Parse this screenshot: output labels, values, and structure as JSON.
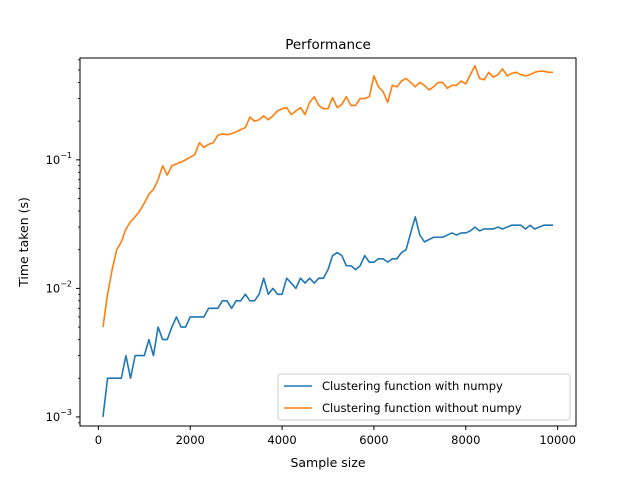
{
  "colors": {
    "series_with_numpy": "#1f77b4",
    "series_without_numpy": "#ff7f0e",
    "axes": "#000000",
    "legend_border": "#cccccc"
  },
  "chart_data": {
    "type": "line",
    "title": "Performance",
    "xlabel": "Sample size",
    "ylabel": "Time taken (s)",
    "yscale": "log",
    "xlim": [
      -400,
      10400
    ],
    "ylim": [
      0.00085,
      0.62
    ],
    "grid": false,
    "legend": "lower-right",
    "x_ticks": [
      {
        "value": 0,
        "label": "0"
      },
      {
        "value": 2000,
        "label": "2000"
      },
      {
        "value": 4000,
        "label": "4000"
      },
      {
        "value": 6000,
        "label": "6000"
      },
      {
        "value": 8000,
        "label": "8000"
      },
      {
        "value": 10000,
        "label": "10000"
      }
    ],
    "y_ticks": [
      {
        "value": 0.001,
        "base": "10",
        "exp": "−3"
      },
      {
        "value": 0.01,
        "base": "10",
        "exp": "−2"
      },
      {
        "value": 0.1,
        "base": "10",
        "exp": "−1"
      }
    ],
    "x": [
      100,
      200,
      300,
      400,
      500,
      600,
      700,
      800,
      900,
      1000,
      1100,
      1200,
      1300,
      1400,
      1500,
      1600,
      1700,
      1800,
      1900,
      2000,
      2100,
      2200,
      2300,
      2400,
      2500,
      2600,
      2700,
      2800,
      2900,
      3000,
      3100,
      3200,
      3300,
      3400,
      3500,
      3600,
      3700,
      3800,
      3900,
      4000,
      4100,
      4200,
      4300,
      4400,
      4500,
      4600,
      4700,
      4800,
      4900,
      5000,
      5100,
      5200,
      5300,
      5400,
      5500,
      5600,
      5700,
      5800,
      5900,
      6000,
      6100,
      6200,
      6300,
      6400,
      6500,
      6600,
      6700,
      6800,
      6900,
      7000,
      7100,
      7200,
      7300,
      7400,
      7500,
      7600,
      7700,
      7800,
      7900,
      8000,
      8100,
      8200,
      8300,
      8400,
      8500,
      8600,
      8700,
      8800,
      8900,
      9000,
      9100,
      9200,
      9300,
      9400,
      9500,
      9600,
      9700,
      9800,
      9900
    ],
    "series": [
      {
        "name": "Clustering function with numpy",
        "color": "#1f77b4",
        "values": [
          0.001,
          0.002,
          0.002,
          0.002,
          0.002,
          0.003,
          0.002,
          0.003,
          0.003,
          0.003,
          0.004,
          0.003,
          0.005,
          0.004,
          0.004,
          0.005,
          0.006,
          0.005,
          0.005,
          0.006,
          0.006,
          0.006,
          0.006,
          0.007,
          0.007,
          0.007,
          0.008,
          0.008,
          0.007,
          0.008,
          0.008,
          0.009,
          0.008,
          0.008,
          0.009,
          0.012,
          0.009,
          0.01,
          0.009,
          0.009,
          0.012,
          0.011,
          0.01,
          0.012,
          0.011,
          0.012,
          0.011,
          0.012,
          0.012,
          0.014,
          0.018,
          0.019,
          0.018,
          0.015,
          0.015,
          0.014,
          0.015,
          0.018,
          0.016,
          0.016,
          0.017,
          0.017,
          0.016,
          0.017,
          0.017,
          0.019,
          0.02,
          0.027,
          0.036,
          0.026,
          0.023,
          0.024,
          0.025,
          0.025,
          0.025,
          0.026,
          0.027,
          0.026,
          0.027,
          0.027,
          0.028,
          0.03,
          0.028,
          0.029,
          0.029,
          0.029,
          0.03,
          0.029,
          0.03,
          0.031,
          0.031,
          0.031,
          0.029,
          0.031,
          0.029,
          0.03,
          0.031,
          0.031,
          0.031
        ]
      },
      {
        "name": "Clustering function without numpy",
        "color": "#ff7f0e",
        "values": [
          0.005,
          0.009,
          0.014,
          0.02,
          0.023,
          0.029,
          0.033,
          0.036,
          0.04,
          0.046,
          0.054,
          0.059,
          0.07,
          0.09,
          0.076,
          0.09,
          0.093,
          0.096,
          0.1,
          0.105,
          0.11,
          0.136,
          0.125,
          0.132,
          0.136,
          0.155,
          0.159,
          0.157,
          0.16,
          0.165,
          0.172,
          0.178,
          0.215,
          0.2,
          0.205,
          0.22,
          0.205,
          0.22,
          0.24,
          0.25,
          0.255,
          0.225,
          0.24,
          0.255,
          0.225,
          0.28,
          0.31,
          0.265,
          0.25,
          0.25,
          0.305,
          0.255,
          0.27,
          0.31,
          0.265,
          0.265,
          0.3,
          0.3,
          0.31,
          0.45,
          0.37,
          0.34,
          0.28,
          0.38,
          0.37,
          0.41,
          0.43,
          0.4,
          0.37,
          0.4,
          0.38,
          0.35,
          0.37,
          0.4,
          0.4,
          0.36,
          0.38,
          0.38,
          0.41,
          0.39,
          0.46,
          0.54,
          0.43,
          0.42,
          0.48,
          0.44,
          0.46,
          0.51,
          0.45,
          0.47,
          0.48,
          0.46,
          0.45,
          0.46,
          0.48,
          0.49,
          0.49,
          0.48,
          0.48
        ]
      }
    ]
  }
}
